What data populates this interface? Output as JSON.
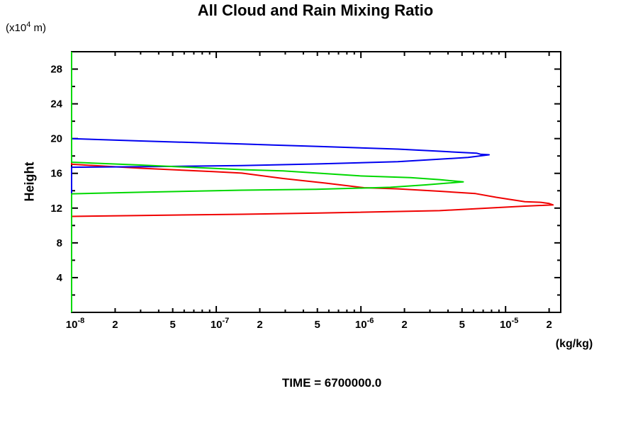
{
  "page": {
    "background": "#ffffff"
  },
  "chart_data": {
    "type": "line",
    "title": "All Cloud and Rain Mixing Ratio",
    "ylabel": "Height",
    "y_axis_unit": {
      "prefix": "(x10",
      "exp": "4",
      "suffix": " m)"
    },
    "x_axis_unit": "(kg/kg)",
    "caption": "TIME = 6700000.0",
    "grid": false,
    "legend": "none",
    "x_axis": {
      "scale": "log",
      "min": 1e-08,
      "max": 2.406e-05,
      "tick_decade_exponents": [
        -8,
        -7,
        -6,
        -5
      ],
      "tick_multipliers": [
        1,
        2,
        3,
        4,
        5,
        6,
        7,
        8,
        9
      ]
    },
    "y_axis": {
      "min": 0,
      "max": 30,
      "major_ticks": [
        4,
        8,
        12,
        16,
        20,
        24,
        28
      ],
      "minor_ticks": [
        2,
        6,
        10,
        14,
        18,
        22,
        26
      ],
      "labels": [
        4,
        8,
        12,
        16,
        20,
        24,
        28
      ]
    },
    "x_ticks": [
      {
        "v": 1e-08,
        "t": "10",
        "e": "-8"
      },
      {
        "v": 2e-08,
        "t": "2"
      },
      {
        "v": 5e-08,
        "t": "5"
      },
      {
        "v": 1e-07,
        "t": "10",
        "e": "-7"
      },
      {
        "v": 2e-07,
        "t": "2"
      },
      {
        "v": 5e-07,
        "t": "5"
      },
      {
        "v": 1e-06,
        "t": "10",
        "e": "-6"
      },
      {
        "v": 2e-06,
        "t": "2"
      },
      {
        "v": 5e-06,
        "t": "5"
      },
      {
        "v": 1e-05,
        "t": "10",
        "e": "-5"
      },
      {
        "v": 2e-05,
        "t": "2"
      }
    ],
    "series": [
      {
        "name": "red",
        "color": "#f00000",
        "points": [
          [
            1e-08,
            30
          ],
          [
            1e-08,
            17.05
          ],
          [
            3e-08,
            16.59
          ],
          [
            9.5e-08,
            16.2
          ],
          [
            1.5e-07,
            16.03
          ],
          [
            2.9e-07,
            15.41
          ],
          [
            5.7e-07,
            14.88
          ],
          [
            1.05e-06,
            14.35
          ],
          [
            1.8e-06,
            14.22
          ],
          [
            3.5e-06,
            13.94
          ],
          [
            6.2e-06,
            13.67
          ],
          [
            8.6e-06,
            13.25
          ],
          [
            1.03e-05,
            13.04
          ],
          [
            1.36e-05,
            12.74
          ],
          [
            1.77e-05,
            12.66
          ],
          [
            2e-05,
            12.53
          ],
          [
            2.13e-05,
            12.37
          ],
          [
            1.36e-05,
            12.23
          ],
          [
            3.5e-06,
            11.71
          ],
          [
            5.1e-07,
            11.43
          ],
          [
            1.5e-07,
            11.29
          ],
          [
            3e-08,
            11.15
          ],
          [
            1e-08,
            11.05
          ],
          [
            1e-08,
            0
          ]
        ]
      },
      {
        "name": "blue",
        "color": "#0000f0",
        "points": [
          [
            1e-08,
            30
          ],
          [
            1e-08,
            20.0
          ],
          [
            3e-08,
            19.73
          ],
          [
            1.5e-07,
            19.38
          ],
          [
            5.1e-07,
            19.09
          ],
          [
            1.8e-06,
            18.79
          ],
          [
            3.5e-06,
            18.55
          ],
          [
            5e-06,
            18.4
          ],
          [
            6.3e-06,
            18.33
          ],
          [
            6.7e-06,
            18.2
          ],
          [
            7.7e-06,
            18.14
          ],
          [
            5.5e-06,
            17.83
          ],
          [
            1.8e-06,
            17.34
          ],
          [
            5.1e-07,
            17.09
          ],
          [
            1.5e-07,
            16.89
          ],
          [
            3e-08,
            16.76
          ],
          [
            1e-08,
            16.7
          ],
          [
            1e-08,
            0
          ]
        ]
      },
      {
        "name": "green",
        "color": "#00d800",
        "points": [
          [
            1e-08,
            30
          ],
          [
            1e-08,
            17.28
          ],
          [
            3e-08,
            16.96
          ],
          [
            1.5e-07,
            16.43
          ],
          [
            2.9e-07,
            16.28
          ],
          [
            9.8e-07,
            15.71
          ],
          [
            2.2e-06,
            15.51
          ],
          [
            3.5e-06,
            15.28
          ],
          [
            5.1e-06,
            15.02
          ],
          [
            2.8e-06,
            14.67
          ],
          [
            1.6e-06,
            14.4
          ],
          [
            4.9e-07,
            14.16
          ],
          [
            1.5e-07,
            14.06
          ],
          [
            3e-08,
            13.83
          ],
          [
            1e-08,
            13.65
          ],
          [
            1e-08,
            0
          ]
        ]
      }
    ]
  }
}
